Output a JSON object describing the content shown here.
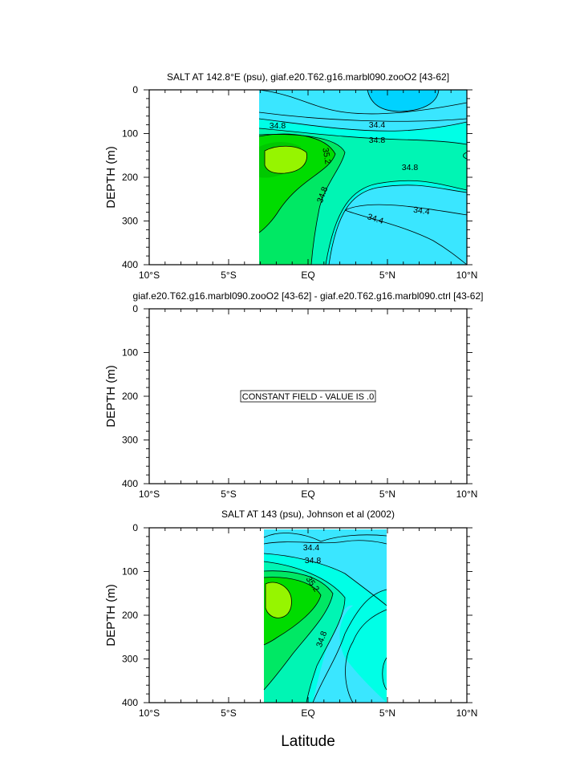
{
  "chart_data": [
    {
      "type": "contour",
      "title": "SALT AT 142.8°E (psu), giaf.e20.T62.g16.marbl090.zooO2 [43-62]",
      "ylabel": "DEPTH (m)",
      "xlabel": "",
      "x_ticks": [
        "10°S",
        "5°S",
        "EQ",
        "5°N",
        "10°N"
      ],
      "y_ticks": [
        "0",
        "100",
        "200",
        "300",
        "400"
      ],
      "xlim": [
        -10,
        10
      ],
      "ylim": [
        0,
        400
      ],
      "data_extent_lat": [
        -3.1,
        10
      ],
      "contour_labels": [
        "34.8",
        "34.4",
        "34.8",
        "35.2",
        "34.8",
        "34.8",
        "34.4",
        "34.4"
      ],
      "fill_colors": [
        "#00d2ff",
        "#3ae6ff",
        "#00ffe6",
        "#00f5b4",
        "#00e864",
        "#00dc00",
        "#96f500"
      ]
    },
    {
      "type": "contour",
      "title": "giaf.e20.T62.g16.marbl090.zooO2 [43-62] - giaf.e20.T62.g16.marbl090.ctrl [43-62]",
      "ylabel": "DEPTH (m)",
      "xlabel": "",
      "x_ticks": [
        "10°S",
        "5°S",
        "EQ",
        "5°N",
        "10°N"
      ],
      "y_ticks": [
        "0",
        "100",
        "200",
        "300",
        "400"
      ],
      "xlim": [
        -10,
        10
      ],
      "ylim": [
        0,
        400
      ],
      "annotation": "CONSTANT FIELD - VALUE IS .0"
    },
    {
      "type": "contour",
      "title": "SALT AT 143 (psu), Johnson et al (2002)",
      "ylabel": "DEPTH (m)",
      "xlabel": "Latitude",
      "x_ticks": [
        "10°S",
        "5°S",
        "EQ",
        "5°N",
        "10°N"
      ],
      "y_ticks": [
        "0",
        "100",
        "200",
        "300",
        "400"
      ],
      "xlim": [
        -10,
        10
      ],
      "ylim": [
        0,
        400
      ],
      "data_extent_lat": [
        -2.8,
        5
      ],
      "contour_labels": [
        "34.4",
        "34.8",
        "35.2",
        "34.8"
      ],
      "fill_colors": [
        "#3ae6ff",
        "#00ffe6",
        "#00f5b4",
        "#00e864",
        "#00dc00",
        "#96f500"
      ]
    }
  ]
}
